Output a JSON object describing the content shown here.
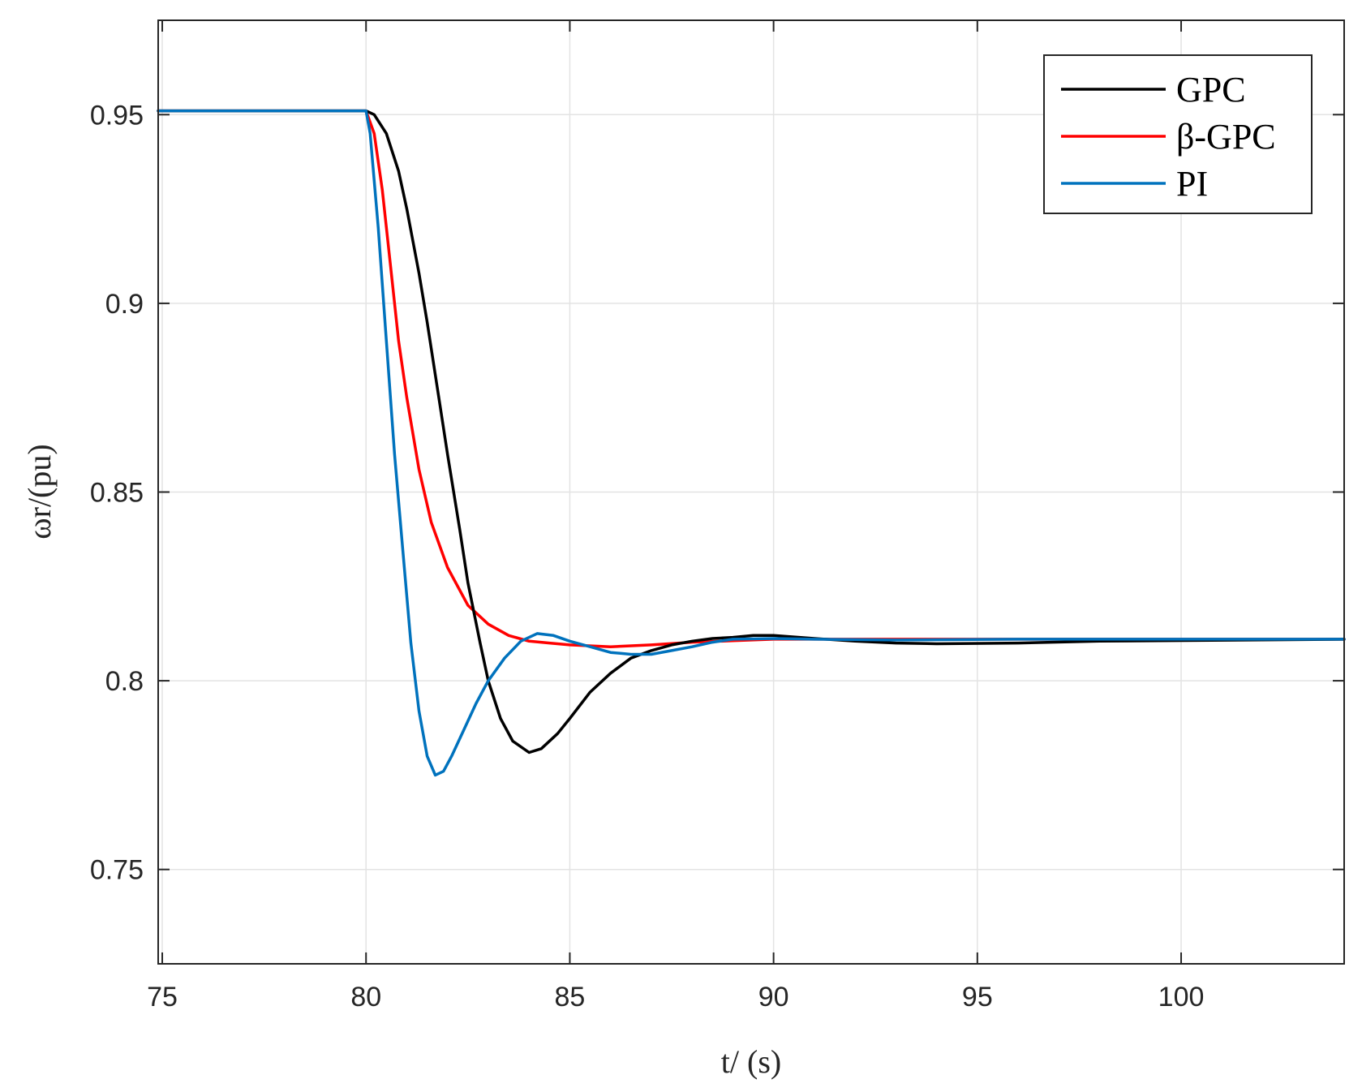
{
  "chart_data": {
    "type": "line",
    "xlabel": "t/ (s)",
    "ylabel": "ωr/(pu)",
    "xlim": [
      74.9,
      104
    ],
    "ylim": [
      0.725,
      0.975
    ],
    "xticks": [
      75,
      80,
      85,
      90,
      95,
      100
    ],
    "yticks": [
      0.75,
      0.8,
      0.85,
      0.9,
      0.95
    ],
    "xtick_labels": [
      "75",
      "80",
      "85",
      "90",
      "95",
      "100"
    ],
    "ytick_labels": [
      "0.75",
      "0.8",
      "0.85",
      "0.9",
      "0.95"
    ],
    "grid": true,
    "legend_position": "top-right",
    "series": [
      {
        "name": "GPC",
        "color": "#000000",
        "points": [
          [
            74.9,
            0.951
          ],
          [
            80.0,
            0.951
          ],
          [
            80.2,
            0.95
          ],
          [
            80.5,
            0.945
          ],
          [
            80.8,
            0.935
          ],
          [
            81.0,
            0.925
          ],
          [
            81.3,
            0.908
          ],
          [
            81.5,
            0.895
          ],
          [
            81.8,
            0.874
          ],
          [
            82.0,
            0.86
          ],
          [
            82.3,
            0.84
          ],
          [
            82.5,
            0.826
          ],
          [
            82.8,
            0.81
          ],
          [
            83.0,
            0.8
          ],
          [
            83.3,
            0.79
          ],
          [
            83.6,
            0.784
          ],
          [
            84.0,
            0.781
          ],
          [
            84.3,
            0.782
          ],
          [
            84.7,
            0.786
          ],
          [
            85.0,
            0.79
          ],
          [
            85.5,
            0.797
          ],
          [
            86.0,
            0.802
          ],
          [
            86.5,
            0.806
          ],
          [
            87.0,
            0.808
          ],
          [
            87.5,
            0.8095
          ],
          [
            88.0,
            0.8105
          ],
          [
            88.5,
            0.8112
          ],
          [
            89.0,
            0.8115
          ],
          [
            89.5,
            0.812
          ],
          [
            90.0,
            0.812
          ],
          [
            91.0,
            0.8112
          ],
          [
            92.0,
            0.8105
          ],
          [
            93.0,
            0.81
          ],
          [
            94.0,
            0.8098
          ],
          [
            96.0,
            0.81
          ],
          [
            98.0,
            0.8105
          ],
          [
            104.0,
            0.811
          ]
        ]
      },
      {
        "name": "β-GPC",
        "color": "#ff0000",
        "points": [
          [
            74.9,
            0.951
          ],
          [
            80.0,
            0.951
          ],
          [
            80.2,
            0.945
          ],
          [
            80.4,
            0.93
          ],
          [
            80.6,
            0.91
          ],
          [
            80.8,
            0.89
          ],
          [
            81.0,
            0.875
          ],
          [
            81.3,
            0.856
          ],
          [
            81.6,
            0.842
          ],
          [
            82.0,
            0.83
          ],
          [
            82.5,
            0.82
          ],
          [
            83.0,
            0.815
          ],
          [
            83.5,
            0.812
          ],
          [
            84.0,
            0.8105
          ],
          [
            84.5,
            0.81
          ],
          [
            85.0,
            0.8095
          ],
          [
            86.0,
            0.809
          ],
          [
            87.0,
            0.8095
          ],
          [
            88.0,
            0.8102
          ],
          [
            89.0,
            0.8106
          ],
          [
            90.0,
            0.811
          ],
          [
            92.0,
            0.811
          ],
          [
            96.0,
            0.811
          ],
          [
            104.0,
            0.811
          ]
        ]
      },
      {
        "name": "PI",
        "color": "#0072bd",
        "points": [
          [
            74.9,
            0.951
          ],
          [
            80.0,
            0.951
          ],
          [
            80.1,
            0.945
          ],
          [
            80.3,
            0.92
          ],
          [
            80.5,
            0.89
          ],
          [
            80.7,
            0.86
          ],
          [
            80.9,
            0.835
          ],
          [
            81.1,
            0.81
          ],
          [
            81.3,
            0.792
          ],
          [
            81.5,
            0.78
          ],
          [
            81.7,
            0.775
          ],
          [
            81.9,
            0.776
          ],
          [
            82.1,
            0.78
          ],
          [
            82.4,
            0.787
          ],
          [
            82.7,
            0.794
          ],
          [
            83.0,
            0.8
          ],
          [
            83.4,
            0.806
          ],
          [
            83.8,
            0.8105
          ],
          [
            84.2,
            0.8125
          ],
          [
            84.6,
            0.812
          ],
          [
            85.0,
            0.8105
          ],
          [
            85.5,
            0.809
          ],
          [
            86.0,
            0.8075
          ],
          [
            86.5,
            0.807
          ],
          [
            87.0,
            0.807
          ],
          [
            87.5,
            0.808
          ],
          [
            88.0,
            0.809
          ],
          [
            88.5,
            0.8102
          ],
          [
            89.0,
            0.811
          ],
          [
            90.0,
            0.8112
          ],
          [
            91.0,
            0.811
          ],
          [
            93.0,
            0.8108
          ],
          [
            96.0,
            0.811
          ],
          [
            104.0,
            0.811
          ]
        ]
      }
    ]
  }
}
